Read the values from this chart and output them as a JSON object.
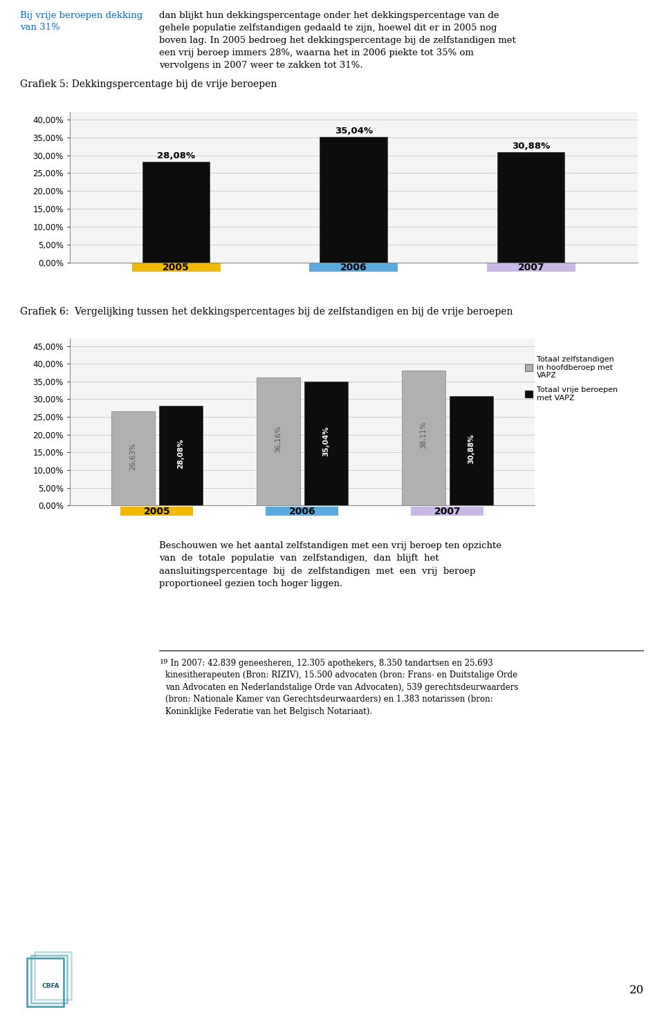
{
  "page_bg": "#ffffff",
  "header_text_blue": "Bij vrije beroepen dekking\nvan 31%",
  "header_text_right": "dan blijkt hun dekkingspercentage onder het dekkingspercentage van de\ngehele populatie zelfstandigen gedaald te zijn, hoewel dit er in 2005 nog\nboven lag. In 2005 bedroeg het dekkingspercentage bij de zelfstandigen met\neen vrij beroep immers 28%, waarna het in 2006 piekte tot 35% om\nvervolgens in 2007 weer te zakken tot 31%.",
  "chart1_title": "Grafiek 5: Dekkingspercentage bij de vrije beroepen",
  "chart1_years": [
    "2005",
    "2006",
    "2007"
  ],
  "chart1_values": [
    0.2808,
    0.3504,
    0.3088
  ],
  "chart1_labels": [
    "28,08%",
    "35,04%",
    "30,88%"
  ],
  "chart1_bar_color": "#0d0d0d",
  "chart1_tick_colors": [
    "#f0b800",
    "#5aaae0",
    "#c8b8e8"
  ],
  "chart1_ylim": [
    0,
    0.42
  ],
  "chart1_yticks": [
    0.0,
    0.05,
    0.1,
    0.15,
    0.2,
    0.25,
    0.3,
    0.35,
    0.4
  ],
  "chart1_ytick_labels": [
    "0,00%",
    "5,00%",
    "10,00%",
    "15,00%",
    "20,00%",
    "25,00%",
    "30,00%",
    "35,00%",
    "40,00%"
  ],
  "chart2_title": "Grafiek 6:  Vergelijking tussen het dekkingspercentages bij de zelfstandigen en bij de vrije beroepen",
  "chart2_years": [
    "2005",
    "2006",
    "2007"
  ],
  "chart2_grey_values": [
    0.2663,
    0.3616,
    0.3811
  ],
  "chart2_black_values": [
    0.2808,
    0.3504,
    0.3088
  ],
  "chart2_grey_labels": [
    "26,63%",
    "36,16%",
    "38,11%"
  ],
  "chart2_black_labels": [
    "28,08%",
    "35,04%",
    "30,88%"
  ],
  "chart2_grey_color": "#b0b0b0",
  "chart2_black_color": "#0d0d0d",
  "chart2_tick_colors": [
    "#f0b800",
    "#5aaae0",
    "#c8b8e8"
  ],
  "chart2_ylim": [
    0,
    0.47
  ],
  "chart2_yticks": [
    0.0,
    0.05,
    0.1,
    0.15,
    0.2,
    0.25,
    0.3,
    0.35,
    0.4,
    0.45
  ],
  "chart2_ytick_labels": [
    "0,00%",
    "5,00%",
    "10,00%",
    "15,00%",
    "20,00%",
    "25,00%",
    "30,00%",
    "35,00%",
    "40,00%",
    "45,00%"
  ],
  "legend_grey": "Totaal zelfstandigen\nin hoofdberoep met\nVAPZ",
  "legend_black": "Totaal vrije beroepen\nmet VAPZ",
  "footer_text": "Beschouwen we het aantal zelfstandigen met een vrij beroep ten opzichte\nvan  de  totale  populatie  van  zelfstandigen,  dan  blijft  het\naansluitingspercentage  bij  de  zelfstandigen  met  een  vrij  beroep\nproportioneel gezien toch hoger liggen.",
  "footnote_superscript": "19",
  "footnote_text": "  In 2007: 42.839 geneesheren, 12.305 apothekers, 8.350 tandartsen en 25.693\nkinesitherapeuten (Bron: RIZIV), 15.500 advocaten (bron: Frans- en Duitstalige Orde\nvan Advocaten en Nederlandstalige Orde van Advocaten), 539 gerechtsdeurwaarders\n(bron: Nationale Kamer van Gerechtsdeurwaarders) en 1.383 notarissen (bron:\nKoninklijke Federatie van het Belgisch Notariaat).",
  "page_number": "20"
}
